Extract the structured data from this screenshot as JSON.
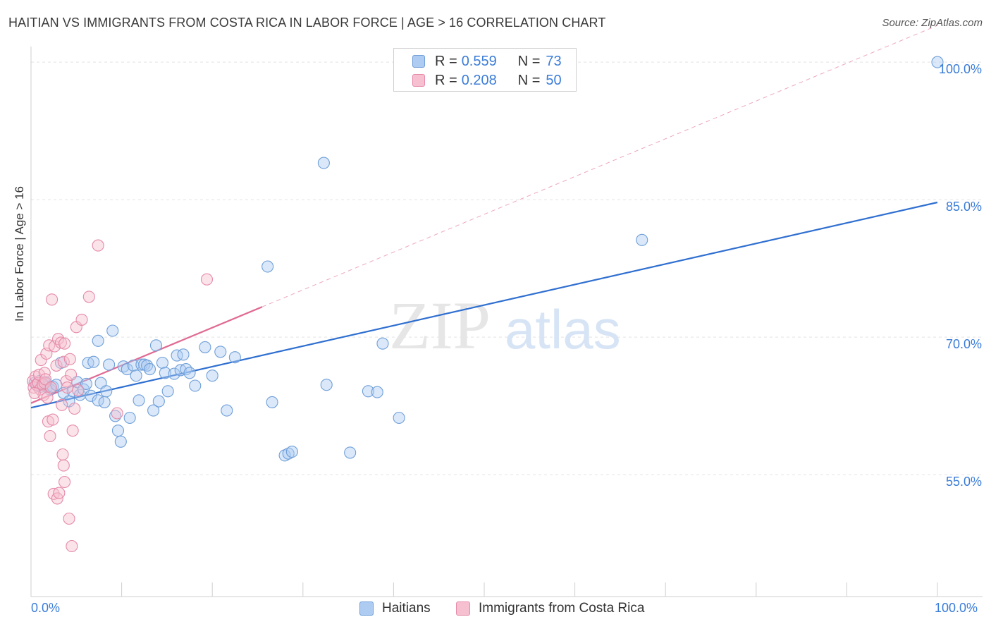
{
  "title": "HAITIAN VS IMMIGRANTS FROM COSTA RICA IN LABOR FORCE | AGE > 16 CORRELATION CHART",
  "source": "Source: ZipAtlas.com",
  "watermark": {
    "zip": "ZIP",
    "atlas": "atlas"
  },
  "legend_stats": [
    {
      "r_label": "R =",
      "r_value": "0.559",
      "n_label": "N =",
      "n_value": "73",
      "color": "#aecbf2",
      "stroke": "#6f9fd8"
    },
    {
      "r_label": "R =",
      "r_value": "0.208",
      "n_label": "N =",
      "n_value": "50",
      "color": "#f7c0d1",
      "stroke": "#e58aa8"
    }
  ],
  "chart_data": {
    "type": "scatter",
    "ylabel": "In Labor Force | Age > 16",
    "xlim": [
      0,
      100
    ],
    "ylim": [
      41.7,
      101.7
    ],
    "x_tick_labels": [
      "0.0%",
      "100.0%"
    ],
    "y_ticks": [
      55,
      70,
      85,
      100
    ],
    "y_tick_labels": [
      "55.0%",
      "70.0%",
      "85.0%",
      "100.0%"
    ],
    "grid": true,
    "legend_placement": "bottom-center",
    "series": [
      {
        "name": "Haitians",
        "color": "#aecbf2",
        "stroke": "#6f9fd8",
        "line_color": "#2f6fd0",
        "trend": {
          "x": [
            0,
            100
          ],
          "y": [
            62.3,
            84.7
          ],
          "dashed": false
        },
        "points": [
          [
            0.4,
            65.0
          ],
          [
            0.7,
            64.7
          ],
          [
            0.9,
            65.2
          ],
          [
            1.1,
            64.6
          ],
          [
            1.3,
            64.9
          ],
          [
            1.6,
            65.1
          ],
          [
            1.8,
            64.6
          ],
          [
            2.1,
            64.3
          ],
          [
            2.4,
            64.6
          ],
          [
            2.8,
            64.8
          ],
          [
            3.3,
            67.2
          ],
          [
            3.6,
            63.9
          ],
          [
            4.2,
            63.0
          ],
          [
            4.6,
            64.1
          ],
          [
            5.1,
            65.1
          ],
          [
            5.4,
            63.7
          ],
          [
            5.8,
            64.3
          ],
          [
            6.1,
            64.9
          ],
          [
            6.3,
            67.2
          ],
          [
            6.6,
            63.6
          ],
          [
            6.9,
            67.3
          ],
          [
            7.4,
            63.1
          ],
          [
            7.4,
            69.6
          ],
          [
            7.7,
            65.0
          ],
          [
            8.1,
            62.9
          ],
          [
            8.3,
            64.1
          ],
          [
            8.6,
            67.0
          ],
          [
            9.0,
            70.7
          ],
          [
            9.3,
            61.4
          ],
          [
            9.6,
            59.8
          ],
          [
            9.9,
            58.6
          ],
          [
            10.2,
            66.8
          ],
          [
            10.6,
            66.5
          ],
          [
            10.9,
            61.2
          ],
          [
            11.3,
            66.9
          ],
          [
            11.6,
            65.8
          ],
          [
            11.9,
            63.1
          ],
          [
            12.2,
            67.0
          ],
          [
            12.5,
            67.0
          ],
          [
            12.8,
            66.9
          ],
          [
            13.1,
            66.5
          ],
          [
            13.5,
            62.0
          ],
          [
            13.8,
            69.1
          ],
          [
            14.1,
            63.0
          ],
          [
            14.5,
            67.2
          ],
          [
            14.8,
            66.1
          ],
          [
            15.1,
            64.1
          ],
          [
            15.8,
            66.0
          ],
          [
            16.1,
            68.0
          ],
          [
            16.5,
            66.4
          ],
          [
            16.8,
            68.1
          ],
          [
            17.1,
            66.5
          ],
          [
            17.5,
            66.1
          ],
          [
            18.1,
            64.7
          ],
          [
            19.2,
            68.9
          ],
          [
            20.0,
            65.8
          ],
          [
            20.9,
            68.4
          ],
          [
            21.6,
            62.0
          ],
          [
            22.5,
            67.8
          ],
          [
            26.1,
            77.7
          ],
          [
            26.6,
            62.9
          ],
          [
            28.0,
            57.1
          ],
          [
            28.4,
            57.3
          ],
          [
            28.8,
            57.5
          ],
          [
            32.3,
            89.0
          ],
          [
            32.6,
            64.8
          ],
          [
            35.2,
            57.4
          ],
          [
            37.2,
            64.1
          ],
          [
            38.2,
            64.0
          ],
          [
            38.8,
            69.3
          ],
          [
            40.6,
            61.2
          ],
          [
            67.4,
            80.6
          ],
          [
            100.0,
            100.0
          ]
        ]
      },
      {
        "name": "Immigrants from Costa Rica",
        "color": "#f7c0d1",
        "stroke": "#e58aa8",
        "line_color": "#e06a93",
        "trend": {
          "x": [
            0,
            25.5
          ],
          "y": [
            62.8,
            73.3
          ],
          "dashed": false
        },
        "trend_ext": {
          "x": [
            25.5,
            100
          ],
          "y": [
            73.3,
            104.0
          ],
          "dashed": true
        },
        "points": [
          [
            0.2,
            65.2
          ],
          [
            0.3,
            64.5
          ],
          [
            0.5,
            65.7
          ],
          [
            0.6,
            64.8
          ],
          [
            0.8,
            65.0
          ],
          [
            0.9,
            65.9
          ],
          [
            1.0,
            64.3
          ],
          [
            1.1,
            67.5
          ],
          [
            1.3,
            64.8
          ],
          [
            1.4,
            63.7
          ],
          [
            1.5,
            66.1
          ],
          [
            1.5,
            65.0
          ],
          [
            1.6,
            65.4
          ],
          [
            1.7,
            68.2
          ],
          [
            1.8,
            63.4
          ],
          [
            1.9,
            60.8
          ],
          [
            2.0,
            69.1
          ],
          [
            2.1,
            59.2
          ],
          [
            2.2,
            64.5
          ],
          [
            2.3,
            74.1
          ],
          [
            2.4,
            61.0
          ],
          [
            2.5,
            52.9
          ],
          [
            2.6,
            69.0
          ],
          [
            2.8,
            66.9
          ],
          [
            2.9,
            52.4
          ],
          [
            3.0,
            69.8
          ],
          [
            3.1,
            53.0
          ],
          [
            3.3,
            69.4
          ],
          [
            3.4,
            62.6
          ],
          [
            3.5,
            57.2
          ],
          [
            3.6,
            56.0
          ],
          [
            3.6,
            67.3
          ],
          [
            3.7,
            69.3
          ],
          [
            3.7,
            54.2
          ],
          [
            3.9,
            65.2
          ],
          [
            4.0,
            64.5
          ],
          [
            4.2,
            50.2
          ],
          [
            4.3,
            67.6
          ],
          [
            4.4,
            65.9
          ],
          [
            4.5,
            47.2
          ],
          [
            4.6,
            59.8
          ],
          [
            4.8,
            62.2
          ],
          [
            5.0,
            71.1
          ],
          [
            5.2,
            64.2
          ],
          [
            5.6,
            71.9
          ],
          [
            6.4,
            74.4
          ],
          [
            7.4,
            80.0
          ],
          [
            9.5,
            61.7
          ],
          [
            19.4,
            76.3
          ],
          [
            0.4,
            63.9
          ]
        ]
      }
    ]
  }
}
